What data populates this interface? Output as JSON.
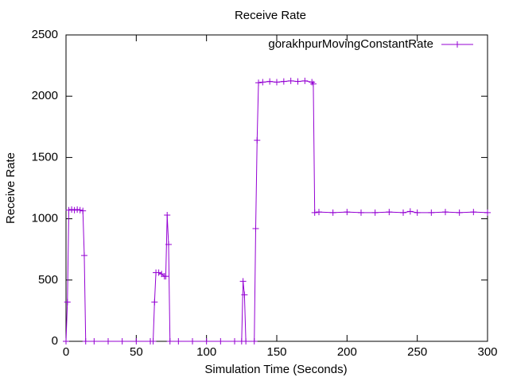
{
  "chart_data": {
    "type": "line",
    "title": "Receive Rate",
    "xlabel": "Simulation Time (Seconds)",
    "ylabel": "Receive Rate",
    "x": [
      0,
      1,
      2,
      4,
      6,
      8,
      10,
      12,
      13,
      14,
      20,
      30,
      40,
      50,
      60,
      62,
      63,
      64,
      66,
      68,
      70,
      71,
      72,
      73,
      74,
      80,
      90,
      100,
      110,
      120,
      125,
      126,
      127,
      128,
      134,
      135,
      136,
      137,
      140,
      145,
      150,
      155,
      160,
      165,
      170,
      175,
      176,
      177,
      180,
      190,
      200,
      210,
      220,
      230,
      240,
      245,
      250,
      260,
      270,
      280,
      290,
      300
    ],
    "series": [
      {
        "name": "gorakhpurMovingConstantRate",
        "color": "#9400d3",
        "values": [
          0,
          320,
          1070,
          1075,
          1070,
          1075,
          1070,
          1065,
          700,
          0,
          0,
          0,
          0,
          0,
          0,
          0,
          320,
          560,
          560,
          550,
          530,
          530,
          1030,
          790,
          0,
          0,
          0,
          0,
          0,
          0,
          0,
          490,
          380,
          0,
          0,
          920,
          1640,
          2110,
          2115,
          2120,
          2115,
          2120,
          2125,
          2120,
          2125,
          2115,
          2100,
          1050,
          1055,
          1050,
          1055,
          1050,
          1050,
          1055,
          1050,
          1060,
          1050,
          1050,
          1055,
          1050,
          1055,
          1050
        ]
      }
    ],
    "xlim": [
      0,
      300
    ],
    "xticks": [
      0,
      50,
      100,
      150,
      200,
      250,
      300
    ],
    "ylim": [
      0,
      2500
    ],
    "yticks": [
      0,
      500,
      1000,
      1500,
      2000,
      2500
    ],
    "legend": "top-right",
    "grid": false
  }
}
